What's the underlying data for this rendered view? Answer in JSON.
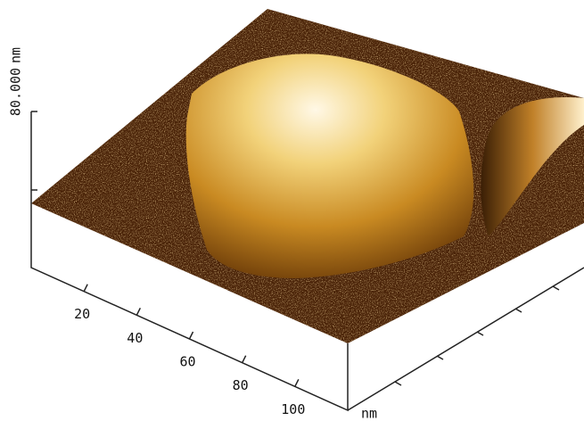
{
  "chart_data": {
    "type": "surface",
    "zlabel": "nm",
    "zlim": [
      0,
      80
    ],
    "zticks": [
      {
        "value": 80,
        "label": "80.000"
      }
    ],
    "xlabel": "nm",
    "xlim": [
      0,
      120
    ],
    "xticks": [
      20,
      40,
      60,
      80,
      100
    ]
  }
}
